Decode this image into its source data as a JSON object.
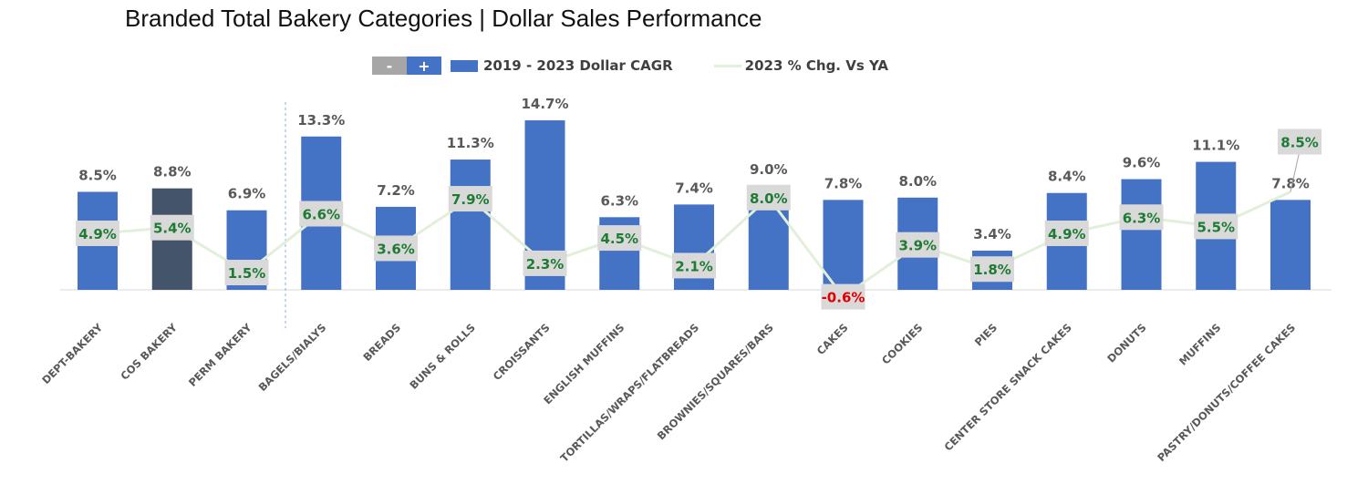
{
  "chart_data": {
    "type": "bar+line",
    "title": "Branded Total Bakery Categories | Dollar Sales Performance",
    "categories": [
      "DEPT-BAKERY",
      "COS BAKERY",
      "PERM BAKERY",
      "BAGELS/BIALYS",
      "BREADS",
      "BUNS & ROLLS",
      "CROISSANTS",
      "ENGLISH MUFFINS",
      "TORTILLAS/WRAPS/FLATBREADS",
      "BROWNIES/SQUARES/BARS",
      "CAKES",
      "COOKIES",
      "PIES",
      "CENTER STORE SNACK CAKES",
      "DONUTS",
      "MUFFINS",
      "PASTRY/DONUTS/COFFEE CAKES"
    ],
    "series": [
      {
        "name": "2019 - 2023 Dollar CAGR",
        "type": "bar",
        "values": [
          8.5,
          8.8,
          6.9,
          13.3,
          7.2,
          11.3,
          14.7,
          6.3,
          7.4,
          9.0,
          7.8,
          8.0,
          3.4,
          8.4,
          9.6,
          11.1,
          7.8
        ]
      },
      {
        "name": "2023 % Chg. Vs YA",
        "type": "line",
        "values": [
          4.9,
          5.4,
          1.5,
          6.6,
          3.6,
          7.9,
          2.3,
          4.5,
          2.1,
          8.0,
          -0.6,
          3.9,
          1.8,
          4.9,
          6.3,
          5.5,
          8.5
        ]
      }
    ],
    "ylim": [
      -3,
      16
    ],
    "grid": false,
    "legend_position": "top",
    "colors": {
      "bar": "#4472C4",
      "bar_highlight": "#44546A",
      "line": "#E2EFDA",
      "line_label": "#1E7B34",
      "negative_label": "#E00000",
      "bar_label": "#595959",
      "label_bg": "#D9D9D9"
    },
    "legend_buttons": {
      "minus": "-",
      "plus": "+"
    }
  }
}
